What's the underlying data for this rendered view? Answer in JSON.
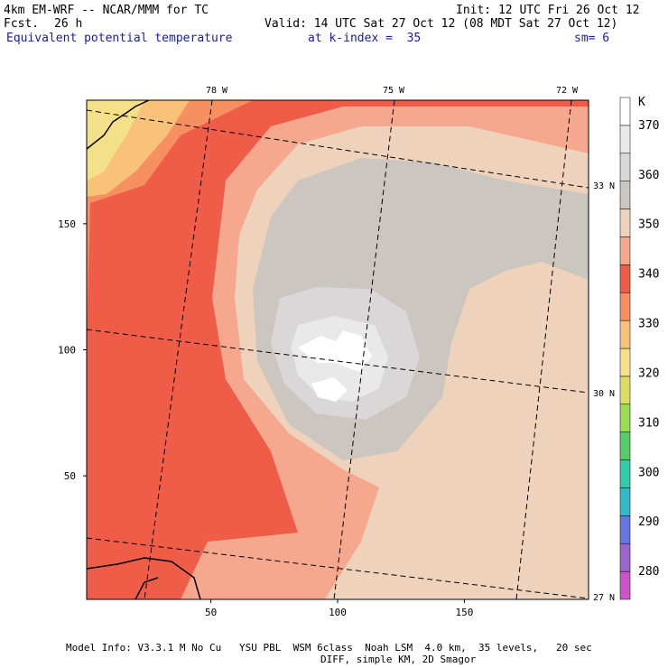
{
  "header": {
    "model_line": "4km EM-WRF -- NCAR/MMM for TC",
    "fcst_label": "Fcst.",
    "fcst_value": "26 h",
    "init": "Init: 12 UTC Fri 26 Oct 12",
    "valid": "Valid: 14 UTC Sat 27 Oct 12 (08 MDT Sat 27 Oct 12)",
    "field_name": "Equivalent potential temperature",
    "level": "at k-index =  35",
    "smoothing": "sm= 6"
  },
  "footer": {
    "line1": "Model Info: V3.3.1 M No Cu   YSU PBL  WSM 6class  Noah LSM  4.0 km,  35 levels,   20 sec",
    "line2": "DIFF, simple KM, 2D Smagor"
  },
  "colors": {
    "coast": "#000000",
    "contour": "#000000"
  },
  "chart_data": {
    "type": "heatmap",
    "title": "Equivalent potential temperature",
    "xlim": [
      1,
      199
    ],
    "ylim": [
      1,
      199
    ],
    "x_ticks": [
      50,
      100,
      150
    ],
    "y_ticks": [
      50,
      100,
      150
    ],
    "lon_labels": [
      "78 W",
      "75 W",
      "72 W"
    ],
    "lat_labels": [
      "33 N",
      "30 N",
      "27 N"
    ],
    "colorbar": {
      "unit": "K",
      "levels": [
        280,
        290,
        300,
        310,
        320,
        330,
        340,
        350,
        360,
        370
      ],
      "colors": [
        "#cc55cc",
        "#9966cc",
        "#6677dd",
        "#33bbcc",
        "#33ccaa",
        "#55cc66",
        "#99dd55",
        "#dddd66",
        "#f5e08a",
        "#f9c27a",
        "#f69060",
        "#ef5c48",
        "#f6a88e",
        "#efd2bc",
        "#ccc6c0",
        "#d9d7d7",
        "#e9e9e9",
        "#ffffff"
      ]
    },
    "field_summary": {
      "storm_center_index": [
        104,
        98
      ],
      "eye_max_K": 370,
      "outer_min_K": 330
    }
  }
}
